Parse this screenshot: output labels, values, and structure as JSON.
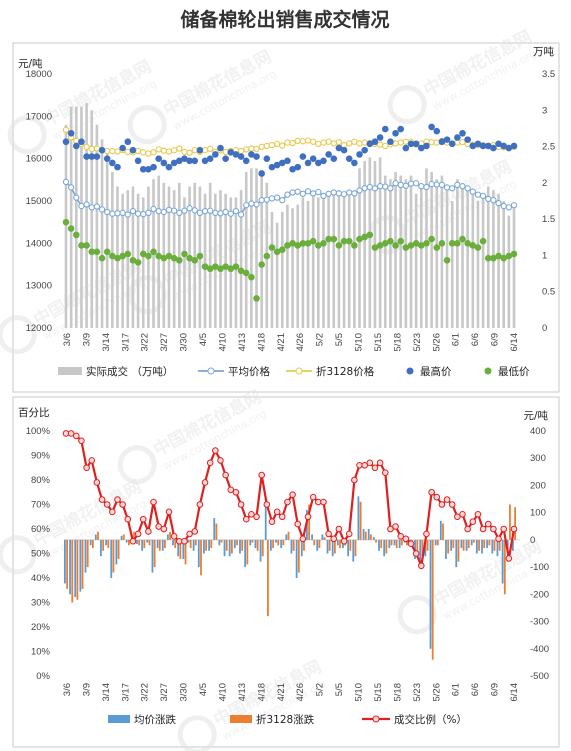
{
  "title": "储备棉轮出销售成交情况",
  "watermark": {
    "cn": "中国棉花信息网",
    "en": "www.cottonchina.org"
  },
  "colors": {
    "deal_bar": "#c8c8c8",
    "avg_price": "#7aa6d8",
    "conv_price": "#e8c84a",
    "max_price": "#3f6fc0",
    "min_price": "#6aae3c",
    "avg_change": "#5b9bd5",
    "conv_change": "#ed7d31",
    "ratio": "#e02020"
  },
  "chart_data": [
    {
      "type": "bar+line",
      "left_unit": "元/吨",
      "right_unit": "万吨",
      "left_ylim": [
        12000,
        18000
      ],
      "left_ticks": [
        12000,
        13000,
        14000,
        15000,
        16000,
        17000,
        18000
      ],
      "right_ylim": [
        0,
        3.5
      ],
      "right_ticks": [
        "0",
        "0.5",
        "1",
        "1.5",
        "2",
        "2.5",
        "3",
        "3.5"
      ],
      "x_tick_labels": [
        "3/6",
        "3/9",
        "3/14",
        "3/17",
        "3/22",
        "3/27",
        "3/30",
        "4/5",
        "4/10",
        "4/13",
        "4/18",
        "4/21",
        "4/26",
        "5/2",
        "5/5",
        "5/10",
        "5/15",
        "5/18",
        "5/23",
        "5/26",
        "6/1",
        "6/6",
        "6/9",
        "6/14"
      ],
      "legend": [
        "实际成交 （万吨）",
        "平均价格",
        "折3128价格",
        "最高价",
        "最低价"
      ],
      "series": [
        {
          "name": "实际成交 （万吨）",
          "kind": "bar",
          "axis": "right",
          "values": [
            2.8,
            3.05,
            3.05,
            3.05,
            3.1,
            3.0,
            2.8,
            2.6,
            2.45,
            2.15,
            1.95,
            1.85,
            1.9,
            1.95,
            1.85,
            1.8,
            1.95,
            2.05,
            2.1,
            2.0,
            1.95,
            1.9,
            2.0,
            1.8,
            1.95,
            2.0,
            1.95,
            1.85,
            2.0,
            1.85,
            1.9,
            1.85,
            1.8,
            1.8,
            1.9,
            2.15,
            2.2,
            2.2,
            2.15,
            2.0,
            1.6,
            1.45,
            1.6,
            1.7,
            1.65,
            1.7,
            1.8,
            1.75,
            1.85,
            1.8,
            1.8,
            1.85,
            1.9,
            1.9,
            1.85,
            1.9,
            1.9,
            2.2,
            2.3,
            2.35,
            2.3,
            2.35,
            2.1,
            2.05,
            2.15,
            2.1,
            2.05,
            2.1,
            1.85,
            1.95,
            2.2,
            2.15,
            2.05,
            2.1,
            1.9,
            1.75,
            2.05,
            1.95,
            1.9,
            1.85,
            1.75,
            1.8,
            1.95,
            1.9,
            1.85,
            1.75,
            1.55,
            1.65
          ]
        },
        {
          "name": "平均价格",
          "kind": "line",
          "axis": "left",
          "values": [
            15450,
            15320,
            15080,
            14880,
            14920,
            14850,
            14870,
            14800,
            14740,
            14700,
            14710,
            14720,
            14680,
            14760,
            14700,
            14690,
            14720,
            14810,
            14760,
            14740,
            14790,
            14770,
            14720,
            14770,
            14830,
            14780,
            14720,
            14760,
            14770,
            14720,
            14710,
            14740,
            14700,
            14760,
            14680,
            14900,
            14940,
            14920,
            15020,
            15030,
            15060,
            15080,
            15020,
            15150,
            15200,
            15220,
            15170,
            15230,
            15180,
            15210,
            15120,
            15170,
            15200,
            15180,
            15160,
            15200,
            15180,
            15250,
            15300,
            15330,
            15300,
            15350,
            15340,
            15300,
            15420,
            15380,
            15360,
            15410,
            15420,
            15350,
            15330,
            15400,
            15390,
            15380,
            15320,
            15300,
            15380,
            15350,
            15300,
            15220,
            15150,
            15120,
            15050,
            15020,
            14950,
            14880,
            14850,
            14900
          ]
        },
        {
          "name": "折3128价格",
          "kind": "line",
          "axis": "left",
          "values": [
            16680,
            16500,
            16420,
            16350,
            16280,
            16230,
            16240,
            16200,
            16180,
            16180,
            16170,
            16200,
            16160,
            16150,
            16180,
            16150,
            16120,
            16150,
            16220,
            16190,
            16170,
            16200,
            16240,
            16160,
            16140,
            16200,
            16160,
            16200,
            16230,
            16160,
            16200,
            16160,
            16180,
            16200,
            16180,
            16220,
            16240,
            16230,
            16280,
            16300,
            16320,
            16350,
            16310,
            16380,
            16370,
            16420,
            16410,
            16430,
            16400,
            16350,
            16380,
            16400,
            16360,
            16390,
            16320,
            16360,
            16400,
            16360,
            16380,
            16370,
            16350,
            16330,
            16300,
            16340,
            16360,
            16380,
            16400,
            16400,
            16330,
            16360,
            16400,
            16390,
            16380,
            16420,
            16380,
            16360,
            16380,
            16390,
            16350,
            16330,
            16320,
            16320,
            16300,
            16320,
            16280,
            16270,
            16260,
            16280
          ]
        },
        {
          "name": "最高价",
          "kind": "scatter",
          "axis": "left",
          "values": [
            16400,
            16600,
            16300,
            16400,
            16050,
            16050,
            16050,
            16200,
            16000,
            15900,
            15800,
            16250,
            16400,
            16200,
            15950,
            15750,
            15750,
            15800,
            16000,
            15900,
            15800,
            15900,
            15950,
            16000,
            15950,
            15950,
            16200,
            15950,
            16000,
            16100,
            16250,
            16000,
            16150,
            16100,
            16050,
            15950,
            16100,
            16050,
            15650,
            16000,
            15800,
            15850,
            15900,
            15950,
            15750,
            15800,
            16050,
            15900,
            16000,
            15900,
            15950,
            16100,
            16000,
            16250,
            16200,
            16000,
            15900,
            16100,
            16200,
            16350,
            16400,
            16500,
            16700,
            16400,
            16600,
            16700,
            16250,
            16350,
            16350,
            16250,
            16300,
            16750,
            16650,
            16400,
            16450,
            16350,
            16500,
            16600,
            16450,
            16300,
            16350,
            16300,
            16300,
            16250,
            16350,
            16300,
            16250,
            16300
          ]
        },
        {
          "name": "最低价",
          "kind": "scatter",
          "axis": "left",
          "values": [
            14500,
            14350,
            14200,
            13950,
            13950,
            13800,
            13800,
            13650,
            13800,
            13700,
            13650,
            13700,
            13750,
            13600,
            13550,
            13750,
            13700,
            13800,
            13700,
            13650,
            13700,
            13650,
            13600,
            13750,
            13650,
            13600,
            13700,
            13450,
            13400,
            13450,
            13400,
            13450,
            13400,
            13450,
            13350,
            13300,
            13200,
            12700,
            13500,
            13700,
            13900,
            13800,
            13850,
            13950,
            14000,
            13950,
            14000,
            14000,
            14050,
            13950,
            14000,
            14100,
            14100,
            13950,
            14050,
            14050,
            13950,
            14100,
            14150,
            14200,
            13900,
            13950,
            14000,
            14050,
            13950,
            14050,
            13900,
            13950,
            14000,
            13950,
            14000,
            14100,
            13900,
            14000,
            13600,
            14000,
            14000,
            14100,
            14000,
            13950,
            13900,
            14050,
            13650,
            13650,
            13700,
            13650,
            13700,
            13750
          ]
        }
      ]
    },
    {
      "type": "bar+line",
      "left_unit": "百分比",
      "right_unit": "元/吨",
      "left_ylim": [
        0,
        100
      ],
      "left_ticks": [
        "0%",
        "10%",
        "20%",
        "30%",
        "40%",
        "50%",
        "60%",
        "70%",
        "80%",
        "90%",
        "100%"
      ],
      "right_ylim": [
        -500,
        400
      ],
      "right_ticks": [
        "-500",
        "-400",
        "-300",
        "-200",
        "-100",
        "0",
        "100",
        "200",
        "300",
        "400"
      ],
      "x_tick_labels": [
        "3/6",
        "3/9",
        "3/14",
        "3/17",
        "3/22",
        "3/27",
        "3/30",
        "4/5",
        "4/10",
        "4/13",
        "4/18",
        "4/21",
        "4/26",
        "5/2",
        "5/5",
        "5/10",
        "5/15",
        "5/18",
        "5/23",
        "5/26",
        "6/1",
        "6/6",
        "6/9",
        "6/14"
      ],
      "legend": [
        "均价涨跌",
        "折3128涨跌",
        "成交比例（%）"
      ],
      "series": [
        {
          "name": "均价涨跌",
          "kind": "bar",
          "axis": "right",
          "values": [
            -160,
            -200,
            -210,
            -190,
            -120,
            -20,
            20,
            -60,
            -20,
            -140,
            -90,
            15,
            -10,
            20,
            -15,
            -40,
            -10,
            -120,
            -30,
            -40,
            20,
            -20,
            -60,
            -70,
            -10,
            -40,
            -100,
            -50,
            -40,
            80,
            -20,
            -60,
            -60,
            -30,
            -50,
            -100,
            -20,
            -30,
            -80,
            120,
            -40,
            -10,
            -30,
            20,
            -50,
            -140,
            -60,
            110,
            20,
            -40,
            20,
            -50,
            -60,
            -20,
            -30,
            -60,
            -80,
            160,
            40,
            40,
            10,
            -40,
            -60,
            -30,
            -20,
            -30,
            -10,
            -20,
            -70,
            -80,
            -60,
            -400,
            -20,
            70,
            -70,
            -40,
            -100,
            -30,
            -40,
            -20,
            -50,
            -50,
            -30,
            -50,
            -60,
            -160,
            -80,
            -40
          ]
        },
        {
          "name": "折3128涨跌",
          "kind": "bar",
          "axis": "right",
          "values": [
            -180,
            -230,
            -220,
            -180,
            -100,
            -30,
            30,
            -40,
            -30,
            -120,
            -70,
            20,
            -20,
            30,
            -20,
            -30,
            -20,
            -100,
            -40,
            -30,
            30,
            -30,
            -70,
            -90,
            -30,
            -20,
            -130,
            -40,
            -30,
            60,
            -10,
            -40,
            -50,
            -20,
            -40,
            -90,
            -10,
            -40,
            -60,
            -280,
            -30,
            -20,
            -20,
            30,
            -40,
            -120,
            -40,
            130,
            -20,
            -30,
            10,
            -40,
            -50,
            -30,
            -20,
            -40,
            -60,
            140,
            30,
            20,
            -10,
            -30,
            -50,
            -20,
            -30,
            -20,
            -20,
            -10,
            -50,
            -60,
            -40,
            -440,
            -20,
            60,
            -50,
            -30,
            -80,
            -40,
            -30,
            -10,
            -40,
            -30,
            -20,
            -40,
            -40,
            -200,
            130,
            120
          ]
        },
        {
          "name": "成交比例（%）",
          "kind": "line",
          "axis": "left",
          "values": [
            99,
            99,
            98,
            96,
            85,
            88,
            79,
            72,
            70,
            67,
            72,
            70,
            64,
            55,
            58,
            64,
            59,
            71,
            61,
            60,
            67,
            57,
            55,
            55,
            58,
            59,
            70,
            79,
            87,
            92,
            88,
            82,
            76,
            75,
            70,
            64,
            66,
            65,
            82,
            70,
            63,
            67,
            65,
            71,
            74,
            62,
            56,
            65,
            73,
            71,
            71,
            58,
            56,
            60,
            55,
            58,
            80,
            86,
            86,
            87,
            85,
            87,
            83,
            60,
            61,
            57,
            56,
            54,
            50,
            45,
            58,
            75,
            73,
            70,
            72,
            70,
            65,
            66,
            60,
            63,
            66,
            60,
            62,
            60,
            56,
            60,
            48,
            60
          ]
        }
      ]
    }
  ]
}
